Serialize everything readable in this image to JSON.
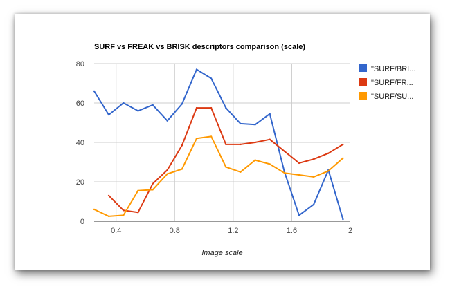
{
  "chart_data": {
    "type": "line",
    "title": "SURF vs FREAK vs BRISK descriptors comparison (scale)",
    "xlabel": "Image scale",
    "ylabel": "",
    "xlim": [
      0.25,
      2.0
    ],
    "ylim": [
      0,
      80
    ],
    "grid": true,
    "legend_position": "right",
    "x_ticks": [
      {
        "value": 0.4,
        "label": "0.4"
      },
      {
        "value": 0.8,
        "label": "0.8"
      },
      {
        "value": 1.2,
        "label": "1.2"
      },
      {
        "value": 1.6,
        "label": "1.6"
      },
      {
        "value": 2.0,
        "label": "2"
      }
    ],
    "y_ticks": [
      {
        "value": 0,
        "label": "0"
      },
      {
        "value": 20,
        "label": "20"
      },
      {
        "value": 40,
        "label": "40"
      },
      {
        "value": 60,
        "label": "60"
      },
      {
        "value": 80,
        "label": "80"
      }
    ],
    "series": [
      {
        "name": "\"SURF/BRI...",
        "color": "#3366cc",
        "points": [
          [
            0.25,
            66
          ],
          [
            0.35,
            54
          ],
          [
            0.45,
            60
          ],
          [
            0.55,
            56
          ],
          [
            0.65,
            59
          ],
          [
            0.75,
            51
          ],
          [
            0.85,
            59.5
          ],
          [
            0.95,
            77
          ],
          [
            1.05,
            72.5
          ],
          [
            1.15,
            57.5
          ],
          [
            1.25,
            49.5
          ],
          [
            1.35,
            49
          ],
          [
            1.45,
            54.5
          ],
          [
            1.55,
            25
          ],
          [
            1.65,
            3
          ],
          [
            1.75,
            8.5
          ],
          [
            1.85,
            26
          ],
          [
            1.95,
            1
          ]
        ]
      },
      {
        "name": "\"SURF/FR...",
        "color": "#dc3912",
        "points": [
          [
            0.35,
            13
          ],
          [
            0.45,
            5.5
          ],
          [
            0.55,
            4.5
          ],
          [
            0.65,
            19
          ],
          [
            0.75,
            26
          ],
          [
            0.85,
            38.5
          ],
          [
            0.95,
            57.5
          ],
          [
            1.05,
            57.5
          ],
          [
            1.15,
            39
          ],
          [
            1.25,
            39
          ],
          [
            1.35,
            40
          ],
          [
            1.45,
            41.5
          ],
          [
            1.55,
            35.5
          ],
          [
            1.65,
            29.5
          ],
          [
            1.75,
            31.5
          ],
          [
            1.85,
            34.5
          ],
          [
            1.95,
            39
          ]
        ]
      },
      {
        "name": "\"SURF/SU...",
        "color": "#ff9900",
        "points": [
          [
            0.25,
            6
          ],
          [
            0.35,
            2.5
          ],
          [
            0.45,
            3
          ],
          [
            0.55,
            15.5
          ],
          [
            0.65,
            16
          ],
          [
            0.75,
            24
          ],
          [
            0.85,
            26.5
          ],
          [
            0.95,
            42
          ],
          [
            1.05,
            43
          ],
          [
            1.15,
            27.5
          ],
          [
            1.25,
            25
          ],
          [
            1.35,
            31
          ],
          [
            1.45,
            29
          ],
          [
            1.55,
            24.5
          ],
          [
            1.65,
            23.5
          ],
          [
            1.75,
            22.5
          ],
          [
            1.85,
            25.5
          ],
          [
            1.95,
            32
          ]
        ]
      }
    ]
  }
}
